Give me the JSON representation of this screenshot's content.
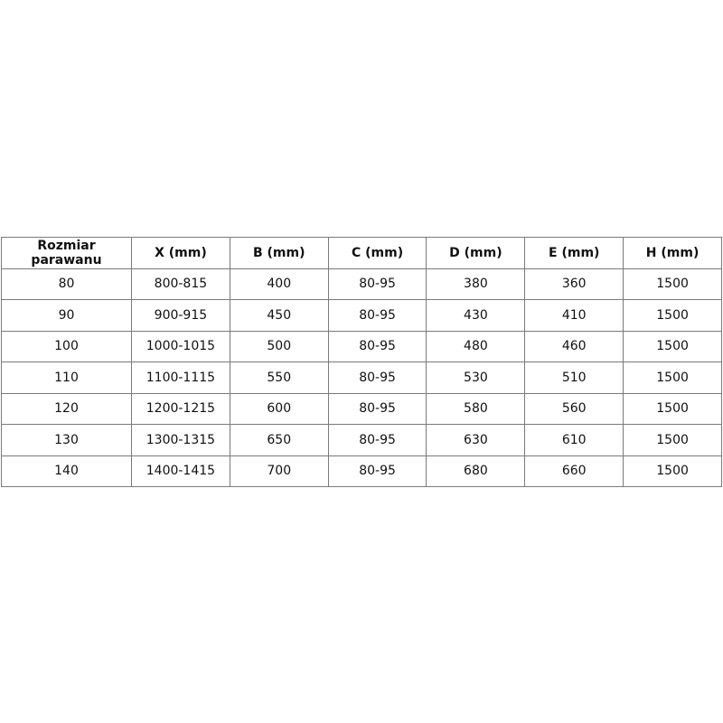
{
  "table": {
    "headers": [
      "Rozmiar parawanu",
      "X (mm)",
      "B (mm)",
      "C (mm)",
      "D (mm)",
      "E (mm)",
      "H (mm)"
    ],
    "rows": [
      [
        "80",
        "800-815",
        "400",
        "80-95",
        "380",
        "360",
        "1500"
      ],
      [
        "90",
        "900-915",
        "450",
        "80-95",
        "430",
        "410",
        "1500"
      ],
      [
        "100",
        "1000-1015",
        "500",
        "80-95",
        "480",
        "460",
        "1500"
      ],
      [
        "110",
        "1100-1115",
        "550",
        "80-95",
        "530",
        "510",
        "1500"
      ],
      [
        "120",
        "1200-1215",
        "600",
        "80-95",
        "580",
        "560",
        "1500"
      ],
      [
        "130",
        "1300-1315",
        "650",
        "80-95",
        "630",
        "610",
        "1500"
      ],
      [
        "140",
        "1400-1415",
        "700",
        "80-95",
        "680",
        "660",
        "1500"
      ]
    ]
  }
}
